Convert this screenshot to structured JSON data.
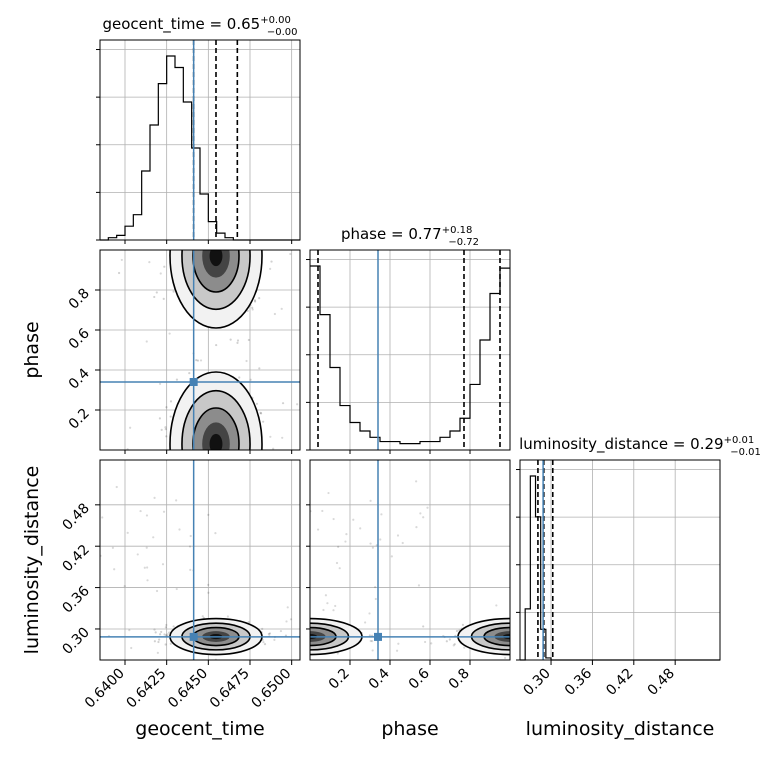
{
  "chart_data": {
    "type": "corner",
    "parameters": [
      {
        "name": "geocent_time",
        "range": [
          0.6385,
          0.6505
        ],
        "ticks": [
          0.64,
          0.6425,
          0.645,
          0.6475,
          0.65
        ],
        "tick_labels": [
          "0.6400",
          "0.6425",
          "0.6450",
          "0.6475",
          "0.6500"
        ],
        "median": 0.65,
        "plus": "+0.00",
        "minus": "−0.00",
        "quantiles": [
          0.64412,
          0.64546,
          0.64674
        ],
        "truth": 0.64412,
        "label_prefix": "geocent_time = 0.65"
      },
      {
        "name": "phase",
        "range": [
          0.0,
          1.0
        ],
        "ticks": [
          0.2,
          0.4,
          0.6,
          0.8
        ],
        "tick_labels": [
          "0.2",
          "0.4",
          "0.6",
          "0.8"
        ],
        "median": 0.77,
        "plus": "+0.18",
        "minus": "−0.72",
        "quantiles": [
          0.04,
          0.77,
          0.95
        ],
        "truth": 0.34,
        "label_prefix": "phase = 0.77"
      },
      {
        "name": "luminosity_distance",
        "range": [
          0.255,
          0.545
        ],
        "ticks": [
          0.3,
          0.36,
          0.42,
          0.48
        ],
        "tick_labels": [
          "0.30",
          "0.36",
          "0.42",
          "0.48"
        ],
        "median": 0.29,
        "plus": "+0.01",
        "minus": "−0.01",
        "quantiles": [
          0.281,
          0.2895,
          0.3025
        ],
        "truth": 0.2885,
        "label_prefix": "luminosity_distance = 0.29"
      }
    ],
    "histograms": [
      {
        "param": "geocent_time",
        "bin_width": 0.0005,
        "edges_start": 0.6385,
        "counts": [
          0,
          1,
          2,
          6,
          11,
          30,
          50,
          68,
          80,
          75,
          60,
          40,
          20,
          8,
          3,
          1,
          0,
          0,
          0,
          0,
          0,
          0,
          0,
          0
        ]
      },
      {
        "param": "phase",
        "bin_width": 0.05,
        "edges_start": 0.0,
        "counts": [
          87,
          64,
          39,
          21,
          13,
          9,
          6,
          4,
          4,
          3,
          3,
          4,
          4,
          6,
          9,
          15,
          31,
          52,
          74,
          86
        ]
      },
      {
        "param": "luminosity_distance",
        "bin_width": 0.0075,
        "edges_start": 0.255,
        "counts": [
          0,
          25,
          90,
          70,
          15,
          1,
          0,
          0,
          0,
          0,
          0,
          0,
          0,
          0,
          0,
          0,
          0,
          0,
          0,
          0,
          0,
          0,
          0,
          0,
          0,
          0,
          0,
          0,
          0,
          0,
          0,
          0,
          0,
          0,
          0,
          0,
          0,
          0,
          0
        ]
      }
    ],
    "joint": [
      {
        "x": "geocent_time",
        "y": "phase",
        "modes": [
          {
            "x": 0.64546,
            "y": 0.97
          },
          {
            "x": 0.64546,
            "y": 0.03
          }
        ]
      },
      {
        "x": "geocent_time",
        "y": "luminosity_distance",
        "modes": [
          {
            "x": 0.64546,
            "y": 0.289
          }
        ]
      },
      {
        "x": "phase",
        "y": "luminosity_distance",
        "modes": [
          {
            "x": 0.0,
            "y": 0.289
          },
          {
            "x": 1.0,
            "y": 0.289
          }
        ]
      }
    ],
    "truth_color": "#4682b4",
    "grid": true,
    "contour_fill": "#222222"
  }
}
